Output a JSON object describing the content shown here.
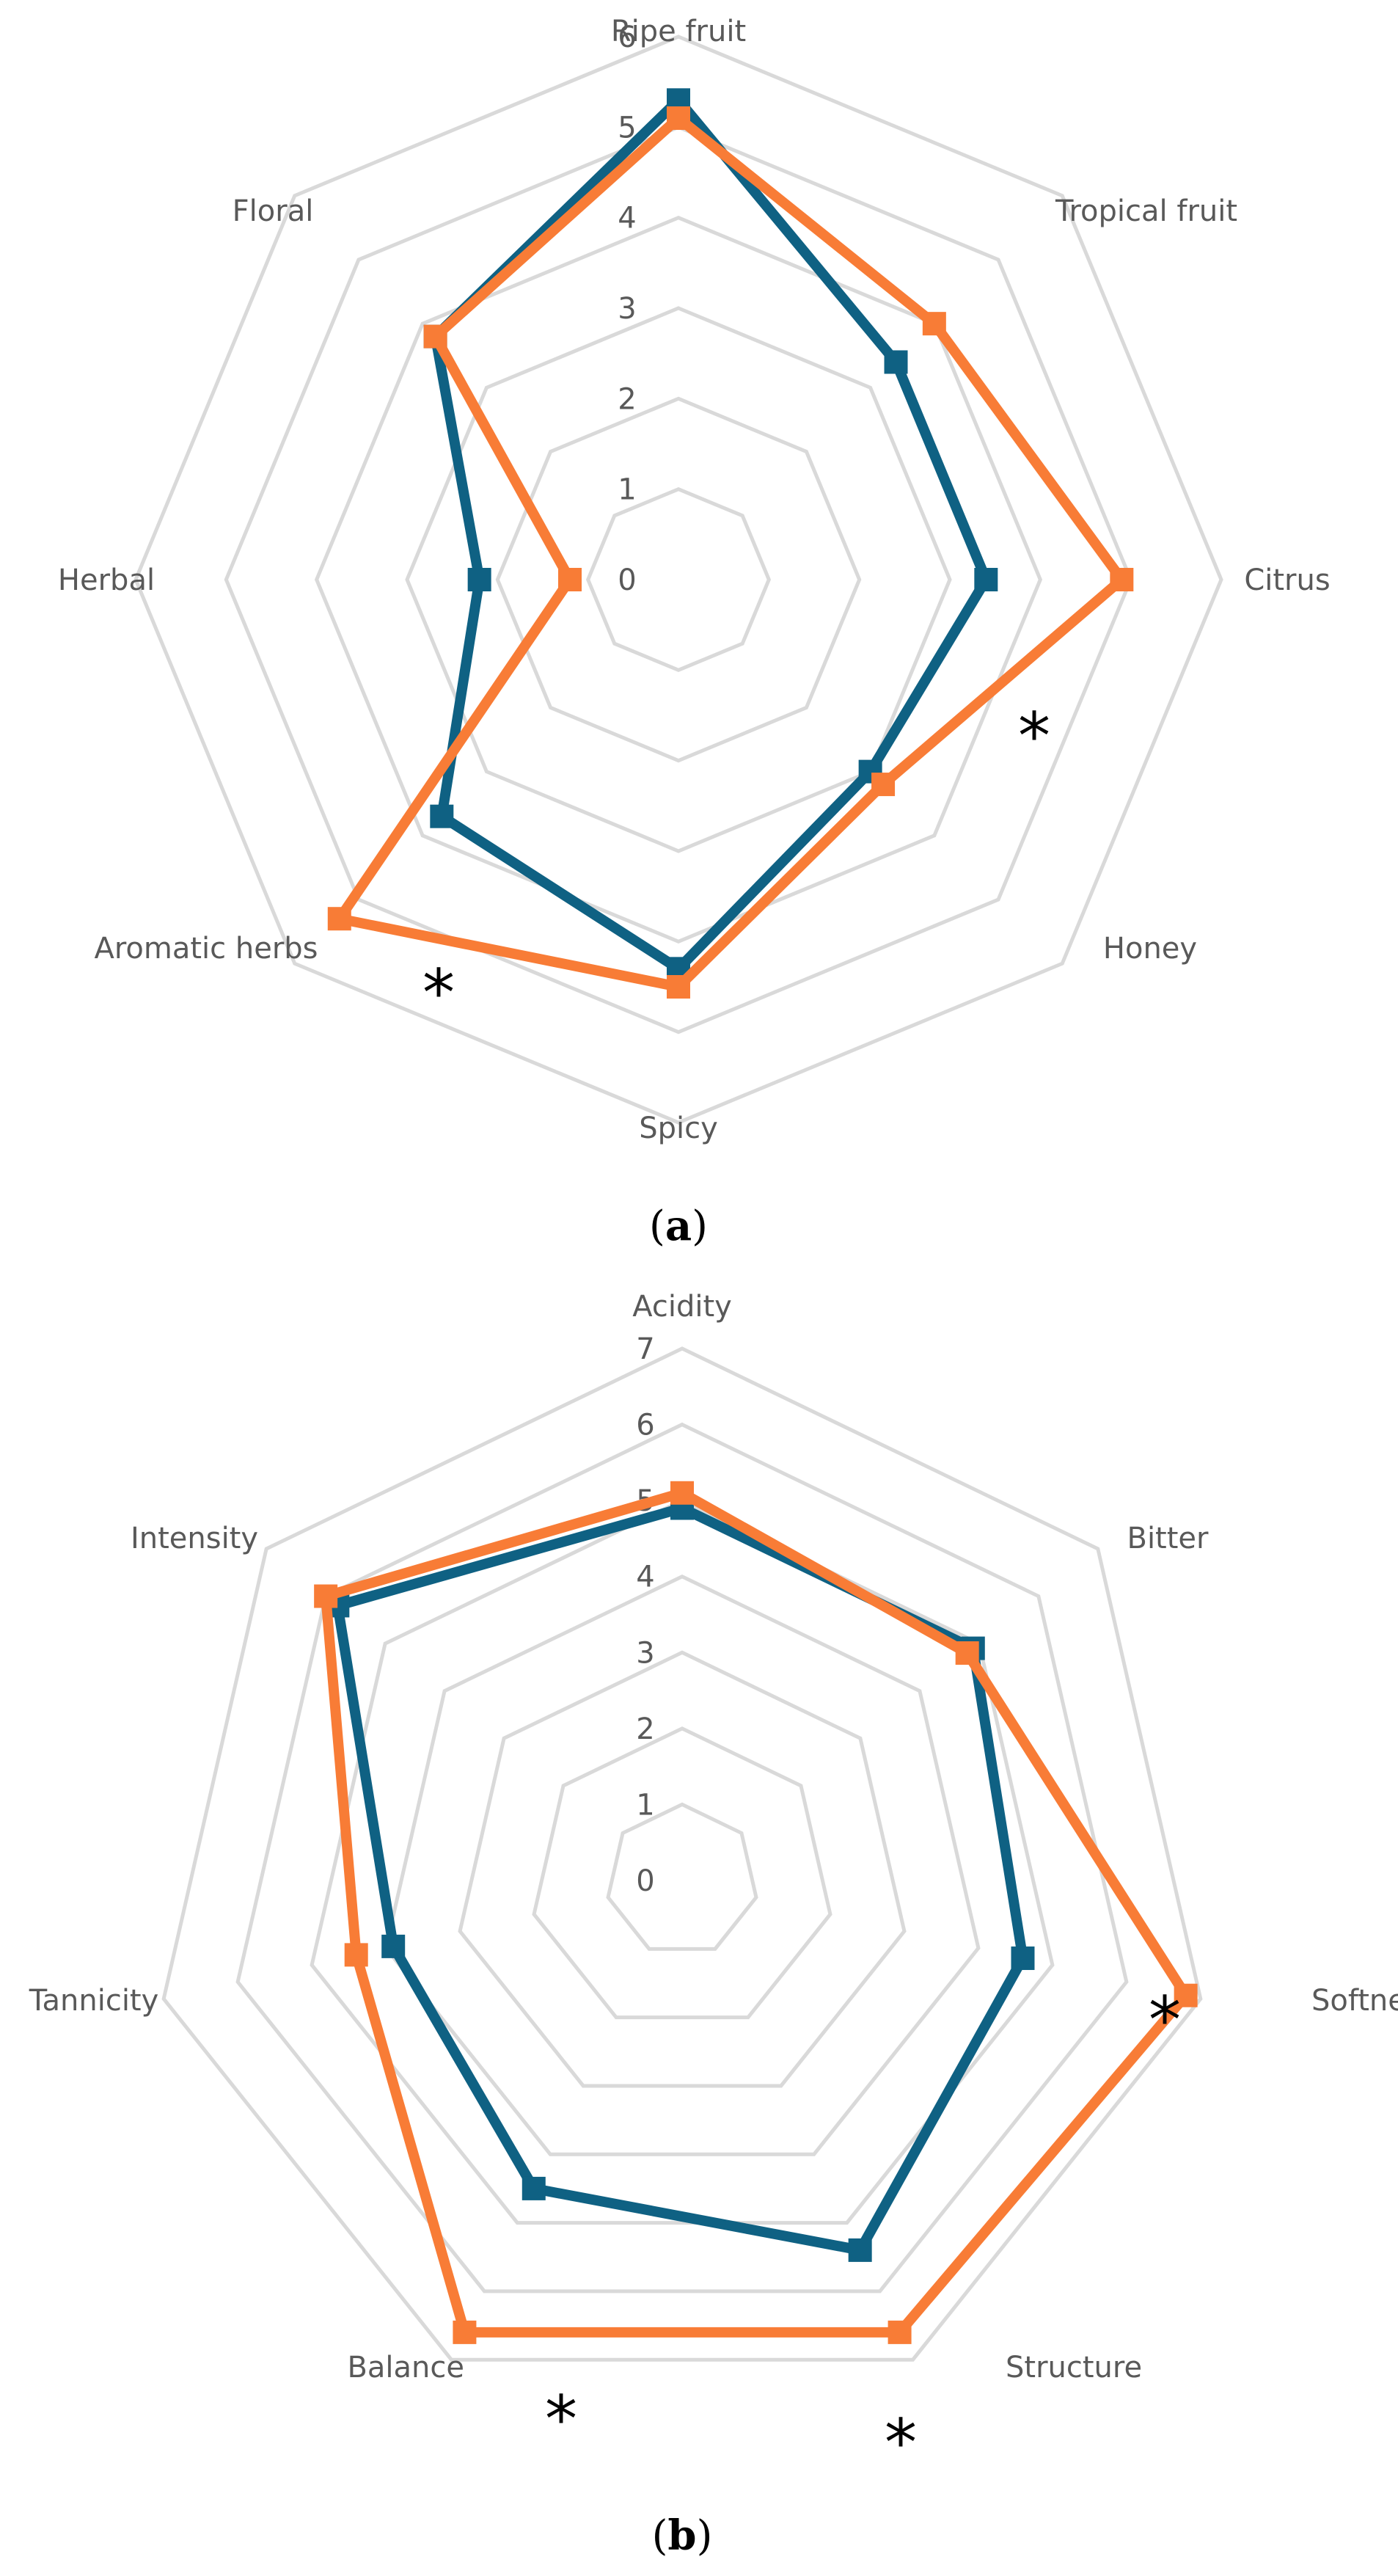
{
  "colors": {
    "series_a": "#0f6183",
    "series_b": "#f87c36",
    "grid": "#d9d9d9",
    "text": "#595959"
  },
  "chart_data": [
    {
      "type": "radar",
      "panel_label": "a",
      "categories": [
        "Ripe fruit",
        "Tropical fruit",
        "Citrus",
        "Honey",
        "Spicy",
        "Aromatic herbs",
        "Herbal",
        "Floral"
      ],
      "rlim": [
        0,
        6
      ],
      "ticks": [
        0,
        1,
        2,
        3,
        4,
        5,
        6
      ],
      "grid": true,
      "legend": "none",
      "series": [
        {
          "color": "#0f6183",
          "values": [
            5.3,
            3.4,
            3.4,
            3.0,
            4.3,
            3.7,
            2.2,
            3.8
          ]
        },
        {
          "color": "#f87c36",
          "values": [
            5.1,
            4.0,
            4.9,
            3.2,
            4.5,
            5.3,
            1.2,
            3.8
          ]
        }
      ],
      "significant": [
        "Citrus",
        "Aromatic herbs"
      ],
      "significance_symbol": "*"
    },
    {
      "type": "radar",
      "panel_label": "b",
      "categories": [
        "Acidity",
        "Bitter",
        "Softness",
        "Structure",
        "Balance",
        "Tannicity",
        "Intensity"
      ],
      "rlim": [
        0,
        7
      ],
      "ticks": [
        0,
        1,
        2,
        3,
        4,
        5,
        6,
        7
      ],
      "grid": true,
      "legend": "none",
      "series": [
        {
          "color": "#0f6183",
          "values": [
            4.9,
            4.9,
            4.6,
            5.4,
            4.5,
            3.9,
            5.8
          ]
        },
        {
          "color": "#f87c36",
          "values": [
            5.1,
            4.8,
            6.8,
            6.6,
            6.6,
            4.4,
            6.0
          ]
        }
      ],
      "significant": [
        "Softness",
        "Structure",
        "Balance"
      ],
      "significance_symbol": "*"
    }
  ]
}
